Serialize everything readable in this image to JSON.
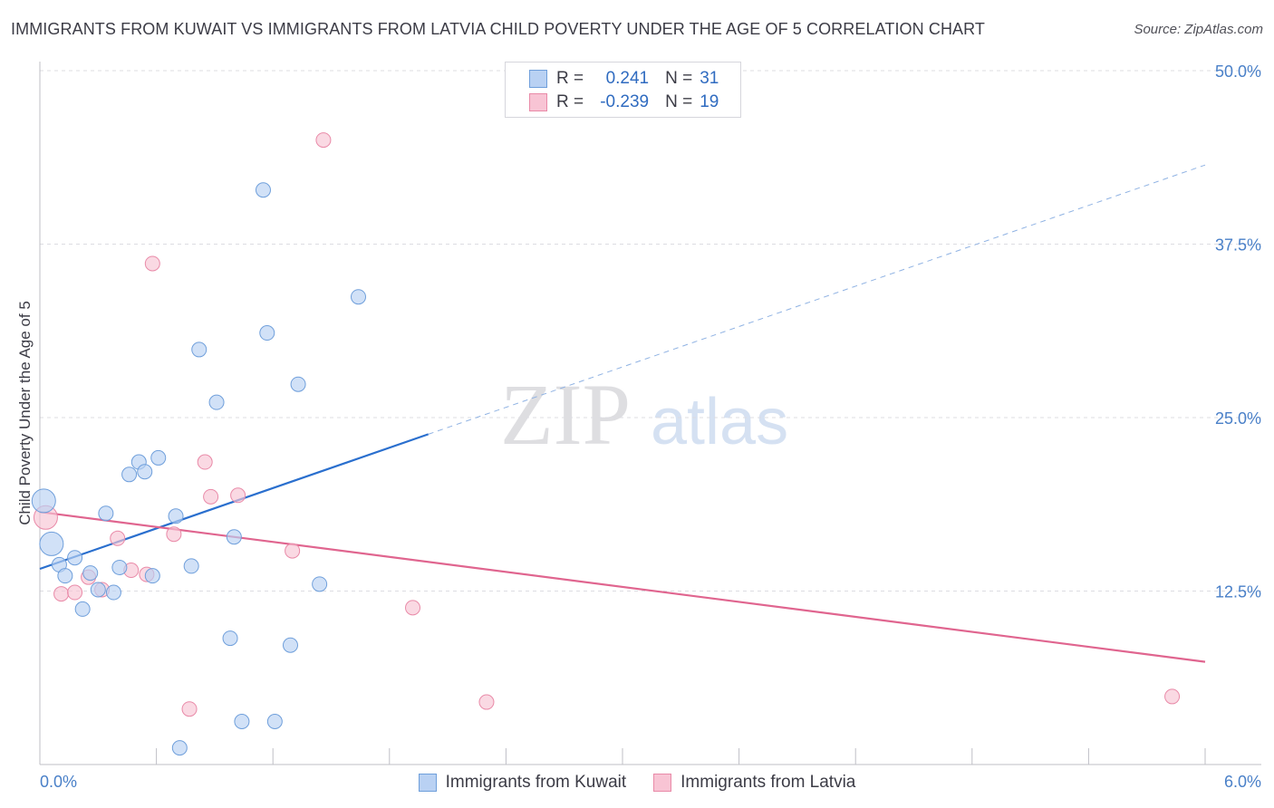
{
  "header": {
    "title": "IMMIGRANTS FROM KUWAIT VS IMMIGRANTS FROM LATVIA CHILD POVERTY UNDER THE AGE OF 5 CORRELATION CHART",
    "source": "Source: ZipAtlas.com"
  },
  "watermark": {
    "zip": "ZIP",
    "atlas": "atlas"
  },
  "legend": {
    "kuwait": {
      "r_label": "R =",
      "r_value": "0.241",
      "n_label": "N =",
      "n_value": "31"
    },
    "latvia": {
      "r_label": "R =",
      "r_value": "-0.239",
      "n_label": "N =",
      "n_value": "19"
    }
  },
  "colors": {
    "kuwait_fill": "#b9d1f3",
    "kuwait_stroke": "#6f9fdb",
    "kuwait_line": "#2a6fce",
    "latvia_fill": "#f8c4d4",
    "latvia_stroke": "#e98aa8",
    "latvia_line": "#e0658f",
    "tick": "#4a80c8",
    "grid": "#dcdce2"
  },
  "chart_data": {
    "type": "scatter",
    "title": "IMMIGRANTS FROM KUWAIT VS IMMIGRANTS FROM LATVIA CHILD POVERTY UNDER THE AGE OF 5 CORRELATION CHART",
    "xlabel": "",
    "ylabel": "Child Poverty Under the Age of 5",
    "xlim": [
      0,
      6
    ],
    "ylim": [
      0,
      50
    ],
    "x_tick_labels": [
      "0.0%",
      "6.0%"
    ],
    "y_tick_values": [
      12.5,
      25.0,
      37.5,
      50.0
    ],
    "y_tick_labels": [
      "12.5%",
      "25.0%",
      "37.5%",
      "50.0%"
    ],
    "grid": "horizontal dashed",
    "legend_position": "top-center and bottom",
    "series": [
      {
        "name": "Immigrants from Kuwait",
        "r": 0.241,
        "n": 31,
        "trend": {
          "x0": 0.0,
          "y0": 14.1,
          "x1": 2.0,
          "y1": 23.8,
          "x_dash_end": 6.0,
          "y_dash_end": 43.2
        },
        "points": [
          {
            "x": 0.02,
            "y": 19.0,
            "big": true
          },
          {
            "x": 0.06,
            "y": 15.9,
            "big": true
          },
          {
            "x": 0.1,
            "y": 14.4
          },
          {
            "x": 0.13,
            "y": 13.6
          },
          {
            "x": 0.18,
            "y": 14.9
          },
          {
            "x": 0.22,
            "y": 11.2
          },
          {
            "x": 0.26,
            "y": 13.8
          },
          {
            "x": 0.3,
            "y": 12.6
          },
          {
            "x": 0.34,
            "y": 18.1
          },
          {
            "x": 0.38,
            "y": 12.4
          },
          {
            "x": 0.41,
            "y": 14.2
          },
          {
            "x": 0.46,
            "y": 20.9
          },
          {
            "x": 0.51,
            "y": 21.8
          },
          {
            "x": 0.54,
            "y": 21.1
          },
          {
            "x": 0.58,
            "y": 13.6
          },
          {
            "x": 0.61,
            "y": 22.1
          },
          {
            "x": 0.7,
            "y": 17.9
          },
          {
            "x": 0.72,
            "y": 1.2
          },
          {
            "x": 0.78,
            "y": 14.3
          },
          {
            "x": 0.82,
            "y": 29.9
          },
          {
            "x": 0.91,
            "y": 26.1
          },
          {
            "x": 0.98,
            "y": 9.1
          },
          {
            "x": 1.0,
            "y": 16.4
          },
          {
            "x": 1.04,
            "y": 3.1
          },
          {
            "x": 1.15,
            "y": 41.4
          },
          {
            "x": 1.17,
            "y": 31.1
          },
          {
            "x": 1.21,
            "y": 3.1
          },
          {
            "x": 1.29,
            "y": 8.6
          },
          {
            "x": 1.33,
            "y": 27.4
          },
          {
            "x": 1.44,
            "y": 13.0
          },
          {
            "x": 1.64,
            "y": 33.7
          }
        ]
      },
      {
        "name": "Immigrants from Latvia",
        "r": -0.239,
        "n": 19,
        "trend": {
          "x0": 0.0,
          "y0": 18.2,
          "x1": 6.0,
          "y1": 7.4
        },
        "points": [
          {
            "x": 0.03,
            "y": 17.8,
            "big": true
          },
          {
            "x": 0.11,
            "y": 12.3
          },
          {
            "x": 0.18,
            "y": 12.4
          },
          {
            "x": 0.25,
            "y": 13.5
          },
          {
            "x": 0.32,
            "y": 12.6
          },
          {
            "x": 0.4,
            "y": 16.3
          },
          {
            "x": 0.47,
            "y": 14.0
          },
          {
            "x": 0.55,
            "y": 13.7
          },
          {
            "x": 0.58,
            "y": 36.1
          },
          {
            "x": 0.69,
            "y": 16.6
          },
          {
            "x": 0.77,
            "y": 4.0
          },
          {
            "x": 0.85,
            "y": 21.8
          },
          {
            "x": 0.88,
            "y": 19.3
          },
          {
            "x": 1.02,
            "y": 19.4
          },
          {
            "x": 1.3,
            "y": 15.4
          },
          {
            "x": 1.46,
            "y": 45.0
          },
          {
            "x": 1.92,
            "y": 11.3
          },
          {
            "x": 2.3,
            "y": 4.5
          },
          {
            "x": 5.83,
            "y": 4.9
          }
        ]
      }
    ]
  },
  "bottom_legend": {
    "kuwait": "Immigrants from Kuwait",
    "latvia": "Immigrants from Latvia"
  }
}
